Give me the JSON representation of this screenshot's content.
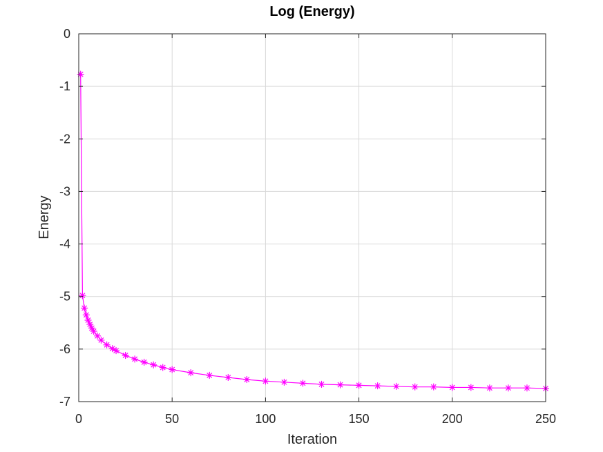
{
  "chart_data": {
    "type": "line",
    "title": "Log (Energy)",
    "xlabel": "Iteration",
    "ylabel": "Energy",
    "xlim": [
      0,
      250
    ],
    "ylim": [
      -7,
      0
    ],
    "xticks": [
      0,
      50,
      100,
      150,
      200,
      250
    ],
    "yticks": [
      0,
      -1,
      -2,
      -3,
      -4,
      -5,
      -6,
      -7
    ],
    "grid": true,
    "series": [
      {
        "color": "#ff00ff",
        "marker": "asterisk",
        "points": [
          [
            1,
            -0.77
          ],
          [
            2,
            -4.98
          ],
          [
            3,
            -5.22
          ],
          [
            4,
            -5.35
          ],
          [
            5,
            -5.45
          ],
          [
            6,
            -5.53
          ],
          [
            7,
            -5.6
          ],
          [
            8,
            -5.66
          ],
          [
            10,
            -5.75
          ],
          [
            12,
            -5.83
          ],
          [
            15,
            -5.92
          ],
          [
            18,
            -5.99
          ],
          [
            20,
            -6.03
          ],
          [
            25,
            -6.12
          ],
          [
            30,
            -6.19
          ],
          [
            35,
            -6.25
          ],
          [
            40,
            -6.3
          ],
          [
            45,
            -6.35
          ],
          [
            50,
            -6.39
          ],
          [
            60,
            -6.45
          ],
          [
            70,
            -6.5
          ],
          [
            80,
            -6.54
          ],
          [
            90,
            -6.58
          ],
          [
            100,
            -6.61
          ],
          [
            110,
            -6.63
          ],
          [
            120,
            -6.65
          ],
          [
            130,
            -6.67
          ],
          [
            140,
            -6.68
          ],
          [
            150,
            -6.69
          ],
          [
            160,
            -6.7
          ],
          [
            170,
            -6.71
          ],
          [
            180,
            -6.72
          ],
          [
            190,
            -6.72
          ],
          [
            200,
            -6.73
          ],
          [
            210,
            -6.73
          ],
          [
            220,
            -6.74
          ],
          [
            230,
            -6.74
          ],
          [
            240,
            -6.74
          ],
          [
            250,
            -6.75
          ]
        ]
      }
    ]
  }
}
